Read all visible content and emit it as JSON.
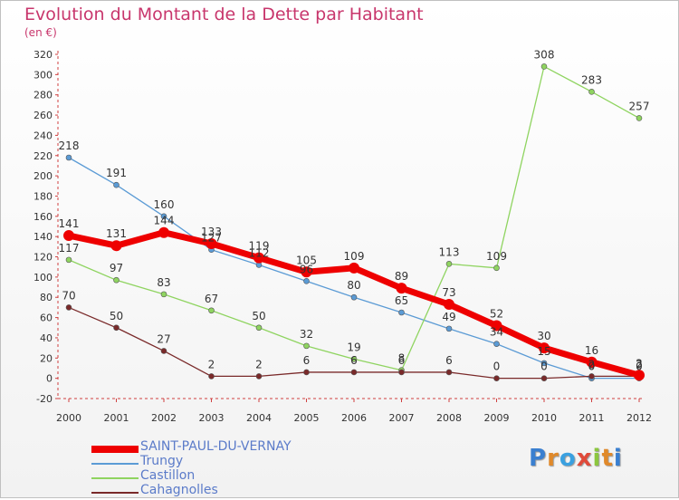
{
  "title": "Evolution du Montant de la Dette par Habitant",
  "subtitle": "(en €)",
  "logo_text": "Proxiti",
  "chart_data": {
    "type": "line",
    "title": "Evolution du Montant de la Dette par Habitant",
    "subtitle": "(en €)",
    "ylim": [
      -20,
      320
    ],
    "y_ticks": [
      -20,
      0,
      20,
      40,
      60,
      80,
      100,
      120,
      140,
      160,
      180,
      200,
      220,
      240,
      260,
      280,
      300,
      320
    ],
    "grid": false,
    "legend_position": "bottom-left",
    "x": [
      "2000",
      "2001",
      "2002",
      "2003",
      "2004",
      "2005",
      "2006",
      "2007",
      "2008",
      "2009",
      "2010",
      "2011",
      "2012"
    ],
    "series": [
      {
        "name": "Trungy",
        "color": "#5b9bd5",
        "values": [
          218,
          191,
          160,
          127,
          112,
          96,
          80,
          65,
          49,
          34,
          15,
          0,
          0
        ],
        "labels": [
          "218",
          "191",
          "160",
          "127",
          "112",
          "96",
          "80",
          "65",
          "49",
          "34",
          "15",
          "0",
          "0"
        ]
      },
      {
        "name": "Castillon",
        "color": "#8fd460",
        "values": [
          117,
          97,
          83,
          67,
          50,
          32,
          19,
          8,
          113,
          109,
          308,
          283,
          257
        ],
        "labels": [
          "117",
          "97",
          "83",
          "67",
          "50",
          "32",
          "19",
          "8",
          "113",
          "109",
          "308",
          "283",
          "257"
        ]
      },
      {
        "name": "Cahagnolles",
        "color": "#7a2a2a",
        "values": [
          70,
          50,
          27,
          2,
          2,
          6,
          6,
          6,
          6,
          0,
          0,
          2,
          2
        ],
        "labels": [
          "70",
          "50",
          "27",
          "2",
          "2",
          "6",
          "6",
          "6",
          "6",
          "0",
          "0",
          "2",
          "2"
        ]
      },
      {
        "name": "SAINT-PAUL-DU-VERNAY",
        "color": "#ee0000",
        "values": [
          141,
          131,
          144,
          133,
          119,
          105,
          109,
          89,
          73,
          52,
          30,
          16,
          3
        ],
        "labels": [
          "141",
          "131",
          "144",
          "133",
          "119",
          "105",
          "109",
          "89",
          "73",
          "52",
          "30",
          "16",
          "3"
        ]
      }
    ]
  }
}
